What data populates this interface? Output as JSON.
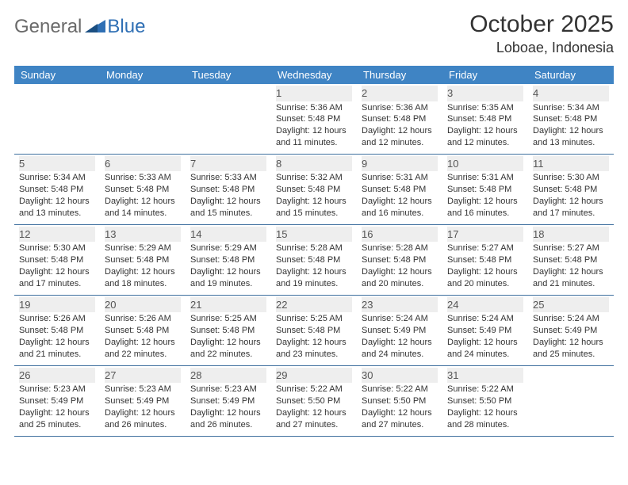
{
  "brand": {
    "part1": "General",
    "part2": "Blue"
  },
  "title": "October 2025",
  "location": "Loboae, Indonesia",
  "colors": {
    "header_bg": "#3f84c4",
    "header_text": "#ffffff",
    "daynum_bg": "#eeeeee",
    "row_border": "#3e6f9e",
    "brand_gray": "#6a6a6a",
    "brand_blue": "#2f6fb4"
  },
  "weekdays": [
    "Sunday",
    "Monday",
    "Tuesday",
    "Wednesday",
    "Thursday",
    "Friday",
    "Saturday"
  ],
  "weeks": [
    [
      {
        "n": "",
        "sunrise": "",
        "sunset": "",
        "day1": "",
        "day2": ""
      },
      {
        "n": "",
        "sunrise": "",
        "sunset": "",
        "day1": "",
        "day2": ""
      },
      {
        "n": "",
        "sunrise": "",
        "sunset": "",
        "day1": "",
        "day2": ""
      },
      {
        "n": "1",
        "sunrise": "Sunrise: 5:36 AM",
        "sunset": "Sunset: 5:48 PM",
        "day1": "Daylight: 12 hours",
        "day2": "and 11 minutes."
      },
      {
        "n": "2",
        "sunrise": "Sunrise: 5:36 AM",
        "sunset": "Sunset: 5:48 PM",
        "day1": "Daylight: 12 hours",
        "day2": "and 12 minutes."
      },
      {
        "n": "3",
        "sunrise": "Sunrise: 5:35 AM",
        "sunset": "Sunset: 5:48 PM",
        "day1": "Daylight: 12 hours",
        "day2": "and 12 minutes."
      },
      {
        "n": "4",
        "sunrise": "Sunrise: 5:34 AM",
        "sunset": "Sunset: 5:48 PM",
        "day1": "Daylight: 12 hours",
        "day2": "and 13 minutes."
      }
    ],
    [
      {
        "n": "5",
        "sunrise": "Sunrise: 5:34 AM",
        "sunset": "Sunset: 5:48 PM",
        "day1": "Daylight: 12 hours",
        "day2": "and 13 minutes."
      },
      {
        "n": "6",
        "sunrise": "Sunrise: 5:33 AM",
        "sunset": "Sunset: 5:48 PM",
        "day1": "Daylight: 12 hours",
        "day2": "and 14 minutes."
      },
      {
        "n": "7",
        "sunrise": "Sunrise: 5:33 AM",
        "sunset": "Sunset: 5:48 PM",
        "day1": "Daylight: 12 hours",
        "day2": "and 15 minutes."
      },
      {
        "n": "8",
        "sunrise": "Sunrise: 5:32 AM",
        "sunset": "Sunset: 5:48 PM",
        "day1": "Daylight: 12 hours",
        "day2": "and 15 minutes."
      },
      {
        "n": "9",
        "sunrise": "Sunrise: 5:31 AM",
        "sunset": "Sunset: 5:48 PM",
        "day1": "Daylight: 12 hours",
        "day2": "and 16 minutes."
      },
      {
        "n": "10",
        "sunrise": "Sunrise: 5:31 AM",
        "sunset": "Sunset: 5:48 PM",
        "day1": "Daylight: 12 hours",
        "day2": "and 16 minutes."
      },
      {
        "n": "11",
        "sunrise": "Sunrise: 5:30 AM",
        "sunset": "Sunset: 5:48 PM",
        "day1": "Daylight: 12 hours",
        "day2": "and 17 minutes."
      }
    ],
    [
      {
        "n": "12",
        "sunrise": "Sunrise: 5:30 AM",
        "sunset": "Sunset: 5:48 PM",
        "day1": "Daylight: 12 hours",
        "day2": "and 17 minutes."
      },
      {
        "n": "13",
        "sunrise": "Sunrise: 5:29 AM",
        "sunset": "Sunset: 5:48 PM",
        "day1": "Daylight: 12 hours",
        "day2": "and 18 minutes."
      },
      {
        "n": "14",
        "sunrise": "Sunrise: 5:29 AM",
        "sunset": "Sunset: 5:48 PM",
        "day1": "Daylight: 12 hours",
        "day2": "and 19 minutes."
      },
      {
        "n": "15",
        "sunrise": "Sunrise: 5:28 AM",
        "sunset": "Sunset: 5:48 PM",
        "day1": "Daylight: 12 hours",
        "day2": "and 19 minutes."
      },
      {
        "n": "16",
        "sunrise": "Sunrise: 5:28 AM",
        "sunset": "Sunset: 5:48 PM",
        "day1": "Daylight: 12 hours",
        "day2": "and 20 minutes."
      },
      {
        "n": "17",
        "sunrise": "Sunrise: 5:27 AM",
        "sunset": "Sunset: 5:48 PM",
        "day1": "Daylight: 12 hours",
        "day2": "and 20 minutes."
      },
      {
        "n": "18",
        "sunrise": "Sunrise: 5:27 AM",
        "sunset": "Sunset: 5:48 PM",
        "day1": "Daylight: 12 hours",
        "day2": "and 21 minutes."
      }
    ],
    [
      {
        "n": "19",
        "sunrise": "Sunrise: 5:26 AM",
        "sunset": "Sunset: 5:48 PM",
        "day1": "Daylight: 12 hours",
        "day2": "and 21 minutes."
      },
      {
        "n": "20",
        "sunrise": "Sunrise: 5:26 AM",
        "sunset": "Sunset: 5:48 PM",
        "day1": "Daylight: 12 hours",
        "day2": "and 22 minutes."
      },
      {
        "n": "21",
        "sunrise": "Sunrise: 5:25 AM",
        "sunset": "Sunset: 5:48 PM",
        "day1": "Daylight: 12 hours",
        "day2": "and 22 minutes."
      },
      {
        "n": "22",
        "sunrise": "Sunrise: 5:25 AM",
        "sunset": "Sunset: 5:48 PM",
        "day1": "Daylight: 12 hours",
        "day2": "and 23 minutes."
      },
      {
        "n": "23",
        "sunrise": "Sunrise: 5:24 AM",
        "sunset": "Sunset: 5:49 PM",
        "day1": "Daylight: 12 hours",
        "day2": "and 24 minutes."
      },
      {
        "n": "24",
        "sunrise": "Sunrise: 5:24 AM",
        "sunset": "Sunset: 5:49 PM",
        "day1": "Daylight: 12 hours",
        "day2": "and 24 minutes."
      },
      {
        "n": "25",
        "sunrise": "Sunrise: 5:24 AM",
        "sunset": "Sunset: 5:49 PM",
        "day1": "Daylight: 12 hours",
        "day2": "and 25 minutes."
      }
    ],
    [
      {
        "n": "26",
        "sunrise": "Sunrise: 5:23 AM",
        "sunset": "Sunset: 5:49 PM",
        "day1": "Daylight: 12 hours",
        "day2": "and 25 minutes."
      },
      {
        "n": "27",
        "sunrise": "Sunrise: 5:23 AM",
        "sunset": "Sunset: 5:49 PM",
        "day1": "Daylight: 12 hours",
        "day2": "and 26 minutes."
      },
      {
        "n": "28",
        "sunrise": "Sunrise: 5:23 AM",
        "sunset": "Sunset: 5:49 PM",
        "day1": "Daylight: 12 hours",
        "day2": "and 26 minutes."
      },
      {
        "n": "29",
        "sunrise": "Sunrise: 5:22 AM",
        "sunset": "Sunset: 5:50 PM",
        "day1": "Daylight: 12 hours",
        "day2": "and 27 minutes."
      },
      {
        "n": "30",
        "sunrise": "Sunrise: 5:22 AM",
        "sunset": "Sunset: 5:50 PM",
        "day1": "Daylight: 12 hours",
        "day2": "and 27 minutes."
      },
      {
        "n": "31",
        "sunrise": "Sunrise: 5:22 AM",
        "sunset": "Sunset: 5:50 PM",
        "day1": "Daylight: 12 hours",
        "day2": "and 28 minutes."
      },
      {
        "n": "",
        "sunrise": "",
        "sunset": "",
        "day1": "",
        "day2": ""
      }
    ]
  ]
}
